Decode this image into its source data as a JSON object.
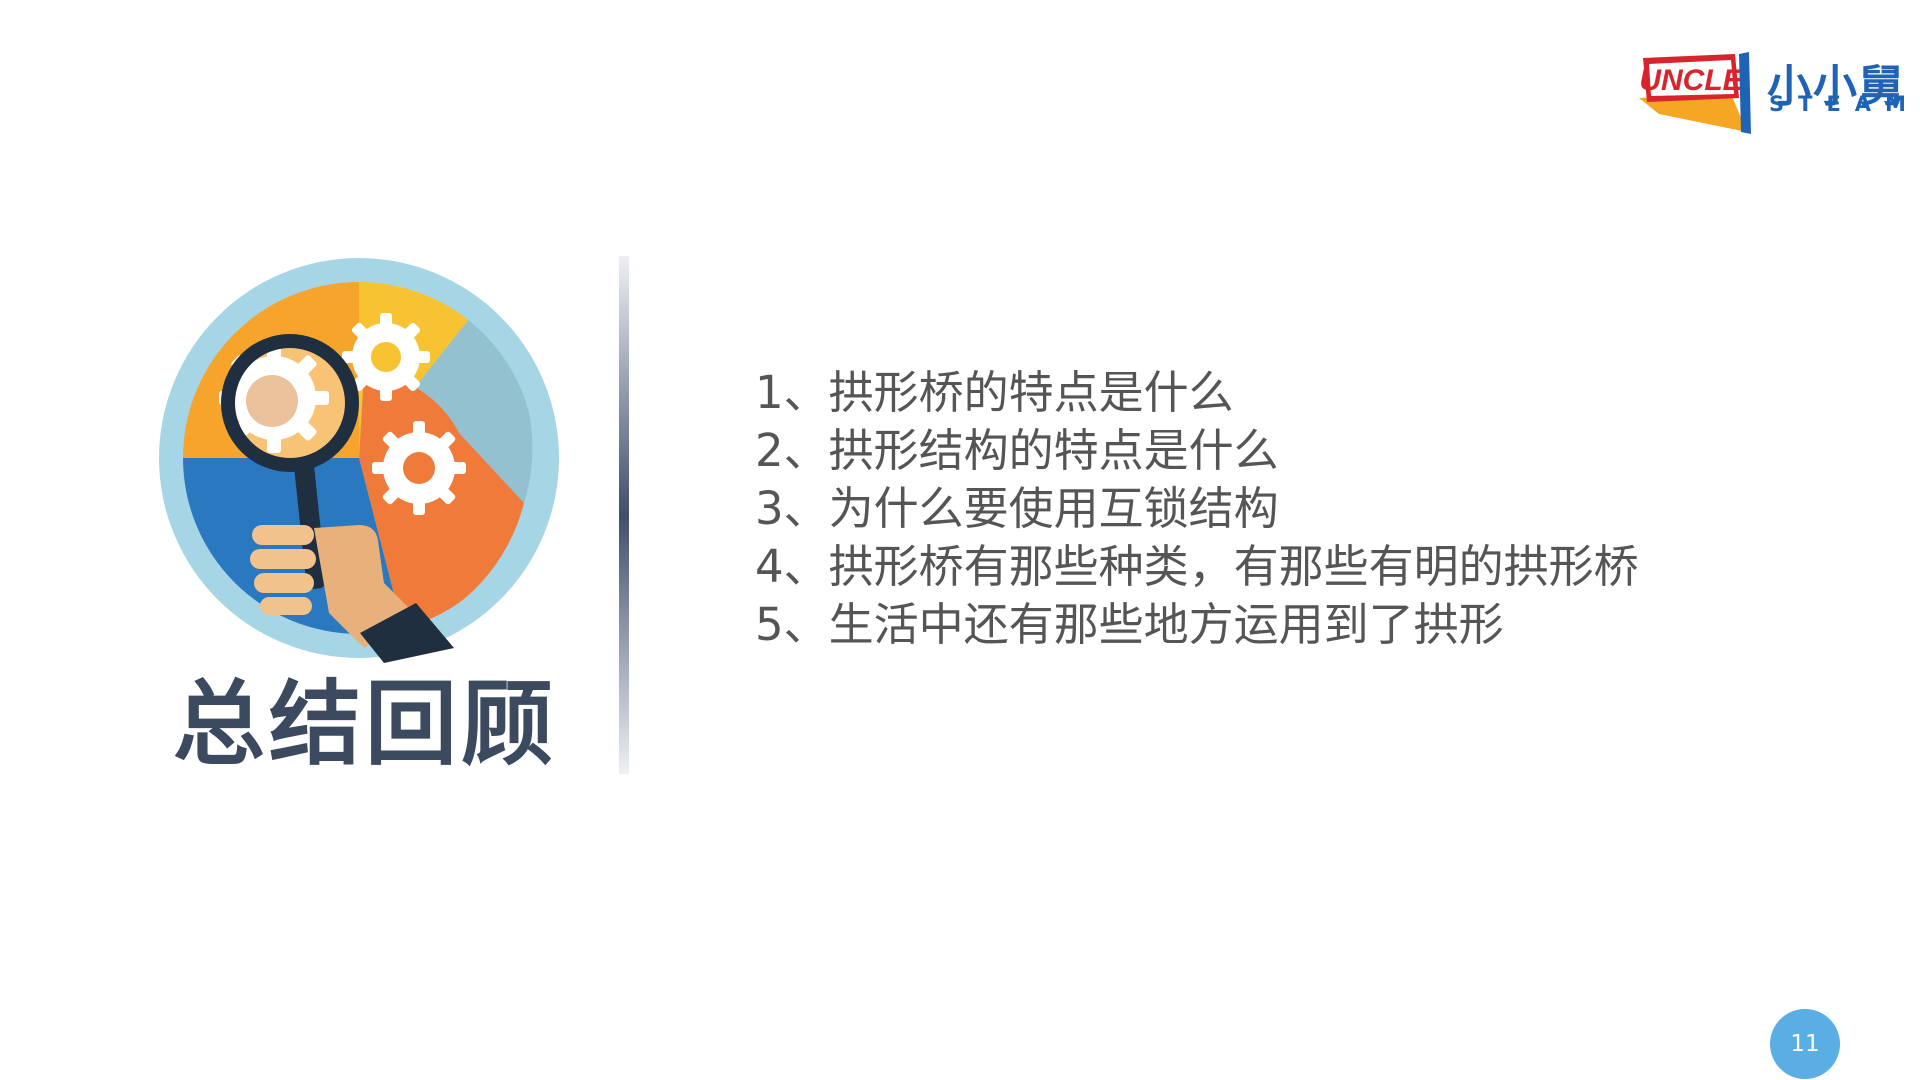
{
  "brand": {
    "badge_text": "UNCLE",
    "name_cn": "小小舅",
    "name_en": "STEAM"
  },
  "section": {
    "title": "总结回顾"
  },
  "points": [
    "1、拱形桥的特点是什么",
    "2、拱形结构的特点是什么",
    "3、为什么要使用互锁结构",
    "4、拱形桥有那些种类，有那些有明的拱形桥",
    "5、生活中还有那些地方运用到了拱形"
  ],
  "page": {
    "number": "11"
  },
  "colors": {
    "accent": "#5aaee3",
    "title": "#3c4a60",
    "text": "#555555",
    "brand_blue": "#1f63b5",
    "brand_red": "#d9232d",
    "brand_orange": "#f5a623"
  },
  "icons": {
    "emblem": "magnifier-gears-icon"
  }
}
